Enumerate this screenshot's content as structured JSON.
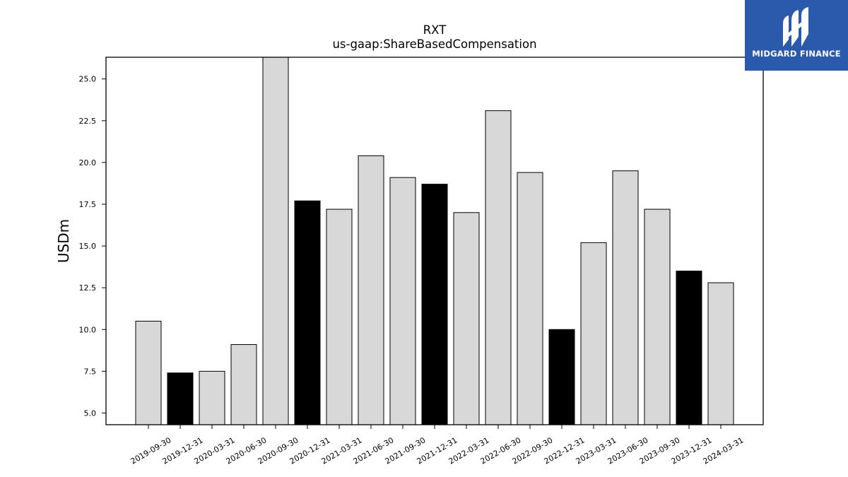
{
  "chart_data": {
    "type": "bar",
    "title": "RXT",
    "subtitle": "us-gaap:ShareBasedCompensation",
    "xlabel": "",
    "ylabel": "USDm",
    "ylim": [
      4.3,
      26.3
    ],
    "yticks": [
      "5.0",
      "7.5",
      "10.0",
      "12.5",
      "15.0",
      "17.5",
      "20.0",
      "22.5",
      "25.0"
    ],
    "categories": [
      "2019-09-30",
      "2019-12-31",
      "2020-03-31",
      "2020-06-30",
      "2020-09-30",
      "2020-12-31",
      "2021-03-31",
      "2021-06-30",
      "2021-09-30",
      "2021-12-31",
      "2022-03-31",
      "2022-06-30",
      "2022-09-30",
      "2022-12-31",
      "2023-03-31",
      "2023-06-30",
      "2023-09-30",
      "2023-12-31",
      "2024-03-31"
    ],
    "values": [
      10.5,
      7.4,
      7.5,
      9.1,
      26.3,
      17.7,
      17.2,
      20.4,
      19.1,
      18.7,
      17.0,
      23.1,
      19.4,
      10.0,
      15.2,
      19.5,
      17.2,
      13.5,
      12.8
    ],
    "highlight": [
      false,
      true,
      false,
      false,
      false,
      true,
      false,
      false,
      false,
      true,
      false,
      false,
      false,
      true,
      false,
      false,
      false,
      true,
      false
    ],
    "colors": {
      "bar": "#d8d8d8",
      "highlight": "#000000",
      "edge": "#000000"
    },
    "grid": false,
    "legend": "none"
  },
  "logo": {
    "text": "MIDGARD FINANCE",
    "icon": "midgard-finance-logo-icon",
    "background": "#2b5aad"
  }
}
